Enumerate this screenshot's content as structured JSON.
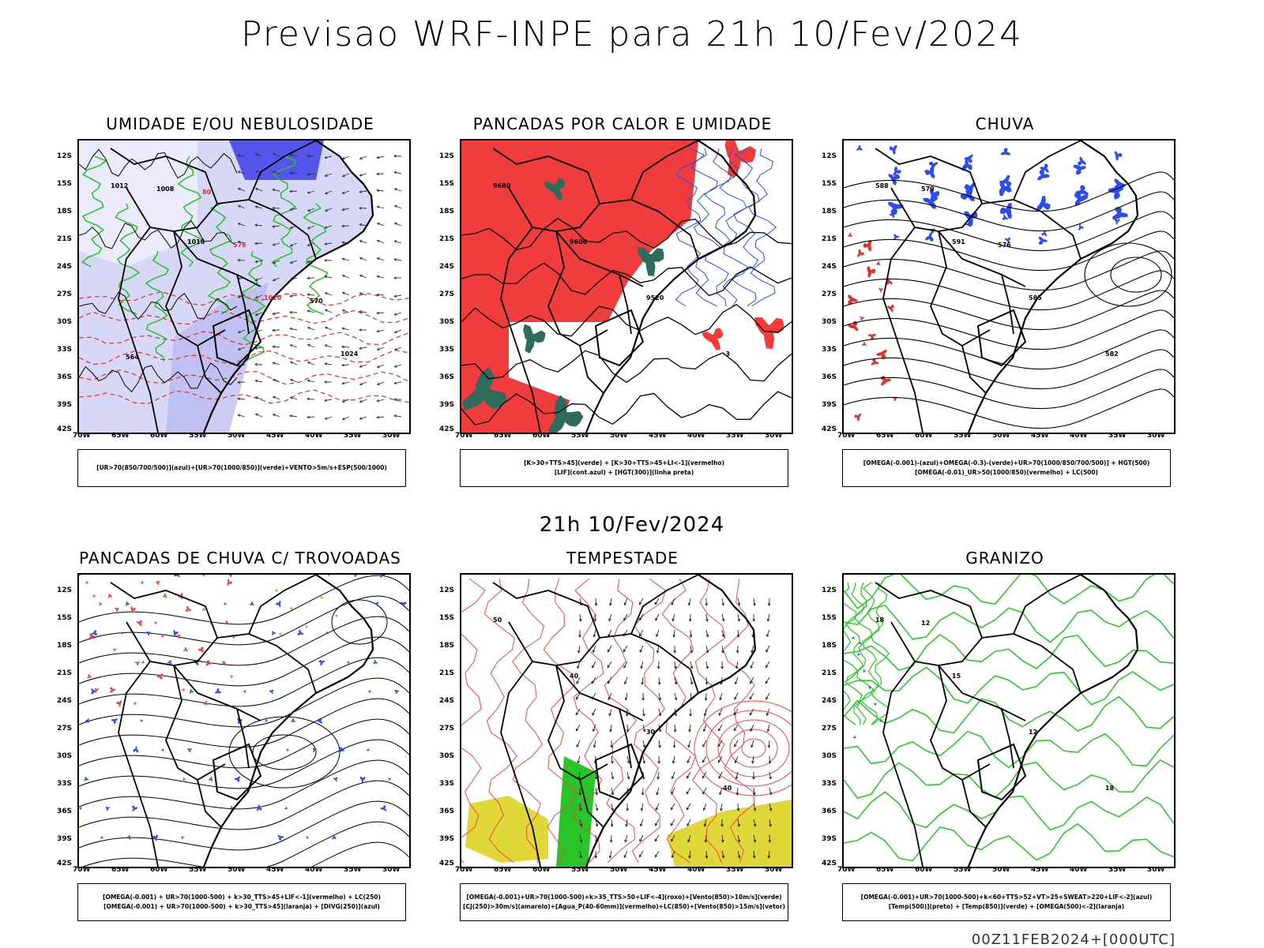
{
  "header": {
    "title": "Previsao WRF-INPE  para 21h 10/Fev/2024"
  },
  "middle_date": "21h 10/Fev/2024",
  "footer": "00Z11FEB2024+[000UTC]",
  "axes": {
    "lat_labels": [
      "12S",
      "15S",
      "18S",
      "21S",
      "24S",
      "27S",
      "30S",
      "33S",
      "36S",
      "39S",
      "42S"
    ],
    "lon_labels": [
      "70W",
      "65W",
      "60W",
      "55W",
      "50W",
      "45W",
      "40W",
      "35W",
      "30W"
    ]
  },
  "panels": [
    {
      "title": "UMIDADE E/OU NEBULOSIDADE",
      "legend": [
        "[UR>70(850/700/500)](azul)+[UR>70(1000/850)](verde)+VENTO>5m/s+ESP(500/1000)"
      ],
      "contour_labels": [
        "1012",
        "1016",
        "1020",
        "1024",
        "1008",
        "576",
        "570",
        "564",
        "80"
      ],
      "colors": {
        "fill": "#b7b7f0",
        "deep": "#3434e8",
        "line1": "#22c422",
        "line2": "#e03030",
        "line3": "#000000"
      }
    },
    {
      "title": "PANCADAS POR CALOR E UMIDADE",
      "legend": [
        "[K>30+TTS>45](verde) + [K>30+TTS>45+LI<-1](vermelho)",
        "[LIF](cont.azul) + [HGT(300)](linha preta)"
      ],
      "contour_labels": [
        "9680",
        "9600",
        "9520",
        "-3"
      ],
      "colors": {
        "fill": "#f03c3c",
        "deep": "#2e6b5c",
        "line1": "#2a52e0",
        "line2": "#000000",
        "line3": "#000000"
      }
    },
    {
      "title": "CHUVA",
      "legend": [
        "[OMEGA(-0.001)-(azul)+OMEGA(-0.3)-(verde)+UR>70(1000/850/700/500)] + HGT(500)",
        "[OMEGA(-0.01)_UR>50(1000/850)(vermelho) + LC(500)"
      ],
      "contour_labels": [
        "588",
        "591",
        "585",
        "582",
        "579",
        "576"
      ],
      "colors": {
        "fill": "#2a4ef0",
        "deep": "#e03030",
        "line1": "#000000",
        "line2": "#000000",
        "line3": "#000000"
      }
    },
    {
      "title": "PANCADAS DE CHUVA C/ TROVOADAS",
      "legend": [
        "[OMEGA(-0.001) + UR>70(1000-500) + k>30_TTS>45+LIF<-1](vermelho) + LC(250)",
        "[OMEGA(-0.001) + UR>70(1000-500) + k>30_TTS>45](laranja) + [DIVG(250)](azul)"
      ],
      "contour_labels": [],
      "colors": {
        "fill": "#2a4ef0",
        "deep": "#f03c3c",
        "line1": "#000000",
        "line2": "#e88a1a",
        "line3": "#000000"
      }
    },
    {
      "title": "TEMPESTADE",
      "legend": [
        "[OMEGA(-0.001)+UR>70(1000-500)+k>35_TTS>50+LIF<-4](roxo)+[Vento(850)>10m/s](verde)",
        "[CJ(250)>30m/s](amarelo)+[Agua_P(40-60mm)](vermelho)+LC(850)+[Vento(850)>15m/s](vetor)"
      ],
      "contour_labels": [
        "50",
        "40",
        "30",
        "40"
      ],
      "colors": {
        "fill": "#e0d838",
        "deep": "#28c428",
        "line1": "#f04848",
        "line2": "#000000",
        "line3": "#000000"
      }
    },
    {
      "title": "GRANIZO",
      "legend": [
        "[OMEGA(-0.001)+UR>70(1000-500)+k<60+TTS>52+VT>25+SWEAT>220+LIF<-2](azul)",
        "[Temp(500)](preto) + [Temp(850)](verde) + [OMEGA(500)<-2](laranja)"
      ],
      "contour_labels": [
        "18",
        "15",
        "12",
        "18",
        "12"
      ],
      "colors": {
        "fill": "#ffffff",
        "deep": "#2a4ef0",
        "line1": "#20c820",
        "line2": "#000000",
        "line3": "#000000"
      }
    }
  ]
}
